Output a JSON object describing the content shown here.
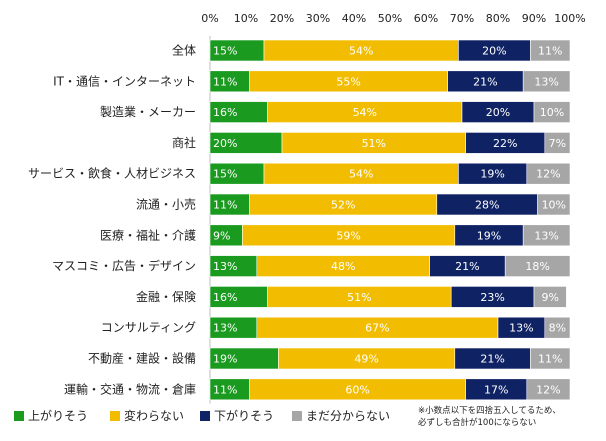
{
  "chart_data": {
    "type": "bar",
    "orientation": "horizontal",
    "stacked": true,
    "xlim": [
      0,
      100
    ],
    "x_ticks": [
      "0%",
      "10%",
      "20%",
      "30%",
      "40%",
      "50%",
      "60%",
      "70%",
      "80%",
      "90%",
      "100%"
    ],
    "categories": [
      "全体",
      "IT・通信・インターネット",
      "製造業・メーカー",
      "商社",
      "サービス・飲食・人材ビジネス",
      "流通・小売",
      "医療・福祉・介護",
      "マスコミ・広告・デザイン",
      "金融・保険",
      "コンサルティング",
      "不動産・建設・設備",
      "運輸・交通・物流・倉庫"
    ],
    "series": [
      {
        "name": "上がりそう",
        "color": "#1a9a1f",
        "values": [
          15,
          11,
          16,
          20,
          15,
          11,
          9,
          13,
          16,
          13,
          19,
          11
        ]
      },
      {
        "name": "変わらない",
        "color": "#f2bd00",
        "values": [
          54,
          55,
          54,
          51,
          54,
          52,
          59,
          48,
          51,
          67,
          49,
          60
        ]
      },
      {
        "name": "下がりそう",
        "color": "#0f2264",
        "values": [
          20,
          21,
          20,
          22,
          19,
          28,
          19,
          21,
          23,
          13,
          21,
          17
        ]
      },
      {
        "name": "まだ分からない",
        "color": "#a6a6a6",
        "values": [
          11,
          13,
          10,
          7,
          12,
          10,
          13,
          18,
          9,
          8,
          11,
          12
        ]
      }
    ],
    "legend_position": "bottom-left",
    "footnote": [
      "※小数点以下を四捨五入してるため、",
      "必ずしも合計が100にならない"
    ]
  }
}
